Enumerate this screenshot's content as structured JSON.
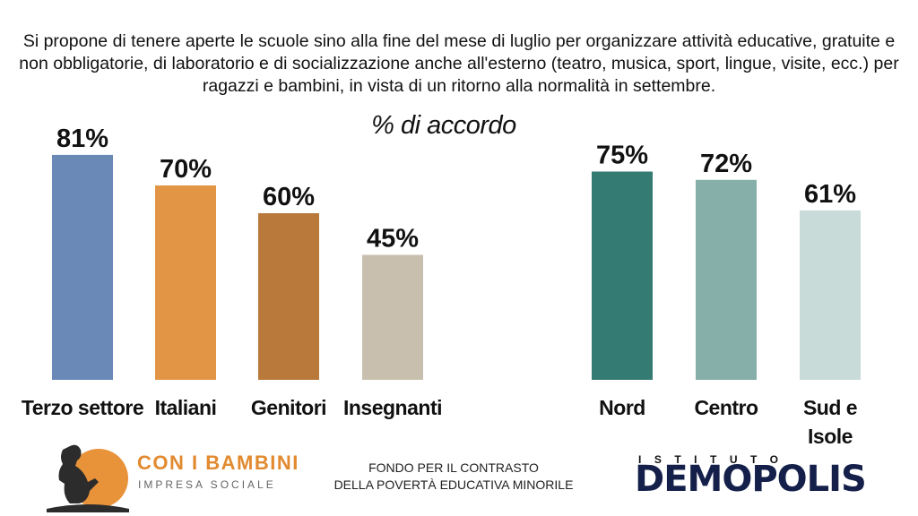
{
  "question": "Si propone di tenere aperte le scuole sino alla fine del mese di luglio per organizzare attività educative, gratuite e non obbligatorie, di laboratorio e di socializzazione anche all'esterno (teatro, musica, sport, lingue, visite, ecc.) per ragazzi e bambini, in vista di un ritorno alla normalità in settembre.",
  "subtitle": "% di accordo",
  "footer": {
    "left_logo_title": "CON I BAMBINI",
    "left_logo_sub": "IMPRESA SOCIALE",
    "center_line1": "FONDO PER IL CONTRASTO",
    "center_line2": "DELLA POVERTÀ EDUCATIVA MINORILE",
    "right_logo_top": "ISTITUTO",
    "right_logo_main": "DEMOPOLIS"
  },
  "chart_data": [
    {
      "type": "bar",
      "categories": [
        "Terzo settore",
        "Italiani",
        "Genitori",
        "Insegnanti"
      ],
      "values": [
        81,
        70,
        60,
        45
      ],
      "value_labels": [
        "81%",
        "70%",
        "60%",
        "45%"
      ],
      "colors": [
        "#6a89b7",
        "#e39546",
        "#b8793b",
        "#c8bfae"
      ],
      "unit": "%",
      "ylim": [
        0,
        100
      ],
      "grid": false
    },
    {
      "type": "bar",
      "categories": [
        "Nord",
        "Centro",
        "Sud e Isole"
      ],
      "values": [
        75,
        72,
        61
      ],
      "value_labels": [
        "75%",
        "72%",
        "61%"
      ],
      "colors": [
        "#347b74",
        "#86afa9",
        "#c8dbd9"
      ],
      "unit": "%",
      "ylim": [
        0,
        100
      ],
      "grid": false
    }
  ]
}
